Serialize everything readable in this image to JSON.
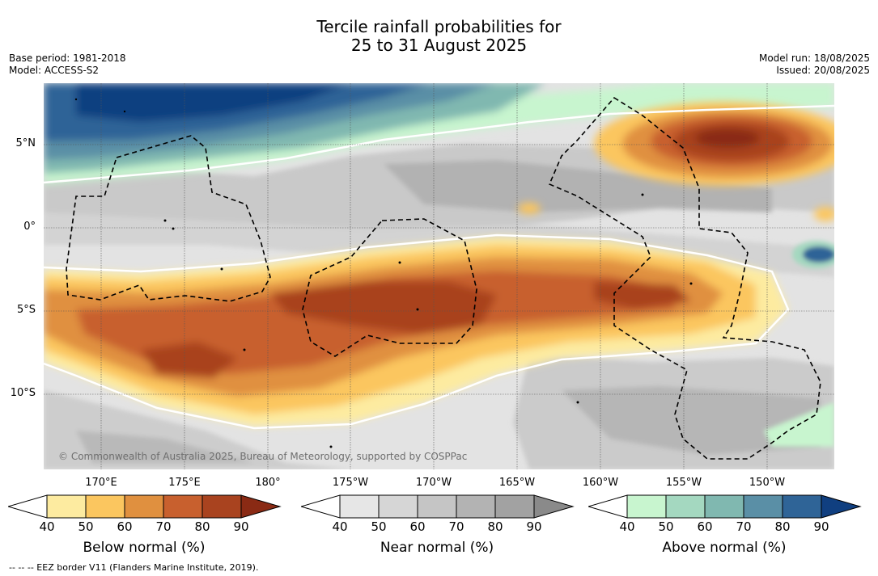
{
  "title": {
    "line1": "Tercile rainfall probabilities for",
    "line2": "25 to 31 August 2025"
  },
  "meta_left": {
    "base_period": "Base period: 1981-2018",
    "model": "Model: ACCESS-S2"
  },
  "meta_right": {
    "model_run": "Model run: 18/08/2025",
    "issued": "Issued: 20/08/2025"
  },
  "map": {
    "lat_labels": [
      "5°N",
      "0°",
      "5°S",
      "10°S"
    ],
    "lon_labels": [
      "170°E",
      "175°E",
      "180°",
      "175°W",
      "170°W",
      "165°W",
      "160°W",
      "155°W",
      "150°W"
    ],
    "copyright": "© Commonwealth of Australia 2025, Bureau of Meteorology, supported by COSPPac"
  },
  "colorbars": [
    {
      "name": "below",
      "title": "Below normal (%)",
      "ticks": [
        "40",
        "50",
        "60",
        "70",
        "80",
        "90"
      ],
      "colors": [
        "#fdeba0",
        "#fbc65f",
        "#e0903f",
        "#c8602e",
        "#a9431f",
        "#8a2a14"
      ]
    },
    {
      "name": "near",
      "title": "Near normal (%)",
      "ticks": [
        "40",
        "50",
        "60",
        "70",
        "80",
        "90"
      ],
      "colors": [
        "#e6e6e6",
        "#d6d6d6",
        "#c5c5c5",
        "#b3b3b3",
        "#a2a2a2",
        "#8a8a8a"
      ]
    },
    {
      "name": "above",
      "title": "Above normal (%)",
      "ticks": [
        "40",
        "50",
        "60",
        "70",
        "80",
        "90"
      ],
      "colors": [
        "#c8f5cf",
        "#a4d8c0",
        "#80b8b0",
        "#5a8fa6",
        "#2f6497",
        "#103f80"
      ]
    }
  ],
  "footnote": "--  --  -- EEZ border V11 (Flanders Marine Institute, 2019)."
}
